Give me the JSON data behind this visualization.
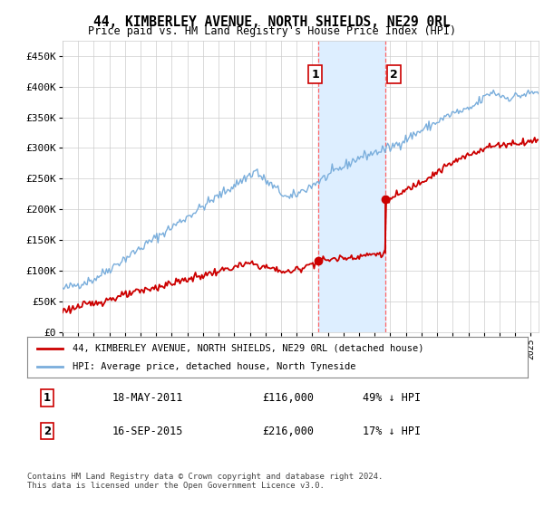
{
  "title": "44, KIMBERLEY AVENUE, NORTH SHIELDS, NE29 0RL",
  "subtitle": "Price paid vs. HM Land Registry's House Price Index (HPI)",
  "ylabel_ticks": [
    "£0",
    "£50K",
    "£100K",
    "£150K",
    "£200K",
    "£250K",
    "£300K",
    "£350K",
    "£400K",
    "£450K"
  ],
  "ytick_values": [
    0,
    50000,
    100000,
    150000,
    200000,
    250000,
    300000,
    350000,
    400000,
    450000
  ],
  "ylim": [
    0,
    475000
  ],
  "xlim_start": 1995.0,
  "xlim_end": 2025.5,
  "hpi_color": "#7aaedc",
  "price_color": "#cc0000",
  "sale1_date": 2011.38,
  "sale1_price": 116000,
  "sale2_date": 2015.71,
  "sale2_price": 216000,
  "highlight_color": "#ddeeff",
  "dashed_color": "#ff6666",
  "legend_label1": "44, KIMBERLEY AVENUE, NORTH SHIELDS, NE29 0RL (detached house)",
  "legend_label2": "HPI: Average price, detached house, North Tyneside",
  "annotation1_label": "1",
  "annotation2_label": "2",
  "table_row1": [
    "1",
    "18-MAY-2011",
    "£116,000",
    "49% ↓ HPI"
  ],
  "table_row2": [
    "2",
    "16-SEP-2015",
    "£216,000",
    "17% ↓ HPI"
  ],
  "footer": "Contains HM Land Registry data © Crown copyright and database right 2024.\nThis data is licensed under the Open Government Licence v3.0.",
  "background_color": "#ffffff",
  "grid_color": "#cccccc"
}
